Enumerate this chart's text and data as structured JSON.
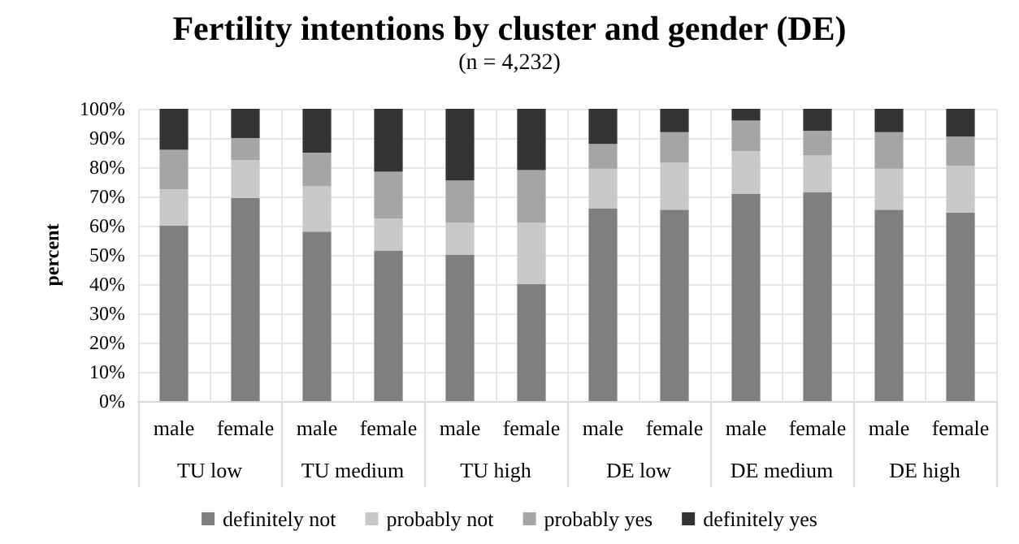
{
  "chart_data": {
    "type": "bar",
    "title": "Fertility intentions by cluster and gender (DE)",
    "subtitle": "(n = 4,232)",
    "ylabel": "percent",
    "categories": [
      "male",
      "female",
      "male",
      "female",
      "male",
      "female",
      "male",
      "female",
      "male",
      "female",
      "male",
      "female"
    ],
    "annotations": [
      "TU low",
      "TU medium",
      "TU high",
      "DE low",
      "DE medium",
      "DE high"
    ],
    "stacked": true,
    "series": [
      {
        "name": "definitely not",
        "color": "#7f7f7f",
        "values": [
          60,
          69.5,
          58,
          51.5,
          50,
          40,
          66,
          65.5,
          71,
          71.5,
          65.5,
          64.5
        ]
      },
      {
        "name": "probably not",
        "color": "#c8c8c8",
        "values": [
          12.5,
          13,
          15.5,
          11,
          11,
          21,
          13.5,
          16,
          14.5,
          12.5,
          14,
          16
        ]
      },
      {
        "name": "probably yes",
        "color": "#a5a5a5",
        "values": [
          13.5,
          7.5,
          11.5,
          16,
          14.5,
          18,
          8.5,
          10.5,
          10.5,
          8.5,
          12.5,
          10
        ]
      },
      {
        "name": "definitely yes",
        "color": "#333333",
        "values": [
          14,
          10,
          15,
          21.5,
          24.5,
          21,
          12,
          8,
          4,
          7.5,
          8,
          9.5
        ]
      }
    ],
    "ylim": [
      0,
      100
    ],
    "yticks": [
      {
        "value": 0,
        "label": "0%"
      },
      {
        "value": 10,
        "label": "10%"
      },
      {
        "value": 20,
        "label": "20%"
      },
      {
        "value": 30,
        "label": "30%"
      },
      {
        "value": 40,
        "label": "40%"
      },
      {
        "value": 50,
        "label": "50%"
      },
      {
        "value": 60,
        "label": "60%"
      },
      {
        "value": 70,
        "label": "70%"
      },
      {
        "value": 80,
        "label": "80%"
      },
      {
        "value": 90,
        "label": "90%"
      },
      {
        "value": 100,
        "label": "100%"
      }
    ],
    "grid": true,
    "legend": "bottom"
  }
}
